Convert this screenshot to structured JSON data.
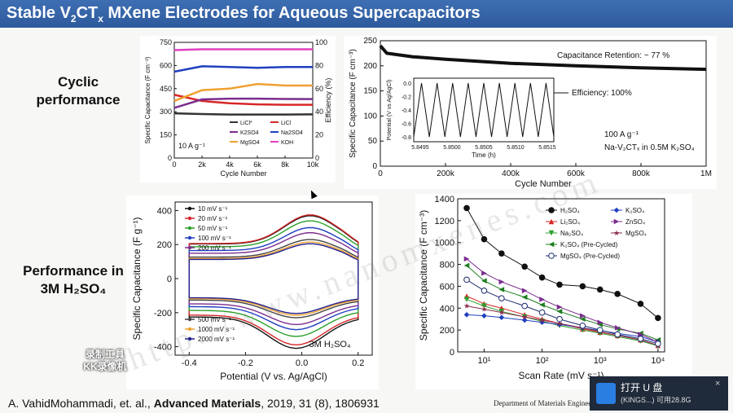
{
  "header": {
    "title_pre": "Stable V",
    "title_sub1": "2",
    "title_mid": "CT",
    "title_sub2": "x",
    "title_post": " MXene Electrodes for Aqueous Supercapacitors"
  },
  "labels": {
    "cyclic": "Cyclic\nperformance",
    "performance": "Performance in\n3M H₂SO₄"
  },
  "citation": {
    "authors": "A. VahidMohammadi, et. al., ",
    "journal": "Advanced Materials",
    "rest": ", 2019, 31 (8), 1806931"
  },
  "department": "Department of Materials Enginee",
  "watermark": "http://www.nanomxenes.com",
  "recorder": {
    "line1": "录制工具",
    "line2": "KK录像机"
  },
  "usb_notice": {
    "title": "打开 U 盘",
    "detail": "(KINGS...)  可用28.8G",
    "close": "×"
  },
  "colors": {
    "header": "#2d5a9c"
  },
  "chart_data": [
    {
      "type": "line",
      "title": "",
      "xlabel": "Cycle Number",
      "ylabel": "Specific Capacitance (F cm⁻³)",
      "y2label": "Efficiency (%)",
      "xlim": [
        0,
        10000
      ],
      "ylim": [
        0,
        750
      ],
      "y2lim": [
        0,
        100
      ],
      "xticks": [
        "0",
        "2k",
        "4k",
        "6k",
        "8k",
        "10k"
      ],
      "yticks": [
        "0",
        "150",
        "300",
        "450",
        "600",
        "750"
      ],
      "y2ticks": [
        "0",
        "20",
        "40",
        "60",
        "80",
        "100"
      ],
      "annotation": "10 A g⁻¹",
      "series": [
        {
          "name": "LiCl*",
          "color": "#333333",
          "x": [
            0,
            2000,
            4000,
            6000,
            8000,
            10000
          ],
          "values": [
            290,
            285,
            282,
            282,
            282,
            283
          ]
        },
        {
          "name": "LiCl",
          "color": "#d62728",
          "x": [
            0,
            2000,
            4000,
            6000,
            8000,
            10000
          ],
          "values": [
            410,
            370,
            355,
            348,
            345,
            345
          ]
        },
        {
          "name": "K2SO4",
          "color": "#7b2d8e",
          "x": [
            0,
            2000,
            4000,
            6000,
            8000,
            10000
          ],
          "values": [
            325,
            380,
            385,
            385,
            383,
            382
          ]
        },
        {
          "name": "Na2SO4",
          "color": "#1f3fbf",
          "x": [
            0,
            2000,
            4000,
            6000,
            8000,
            10000
          ],
          "values": [
            560,
            595,
            590,
            585,
            590,
            590
          ]
        },
        {
          "name": "MgSO4",
          "color": "#f0a030",
          "x": [
            0,
            2000,
            4000,
            6000,
            8000,
            10000
          ],
          "values": [
            370,
            440,
            450,
            480,
            470,
            470
          ]
        },
        {
          "name": "KOH",
          "color": "#e040c0",
          "x": [
            0,
            2000,
            4000,
            6000,
            8000,
            10000
          ],
          "values": [
            700,
            705,
            705,
            705,
            705,
            705
          ]
        }
      ]
    },
    {
      "type": "line",
      "title": "",
      "xlabel": "Cycle Number",
      "ylabel": "Specific Capacitance (F cm⁻³)",
      "xlim": [
        0,
        1000000
      ],
      "ylim": [
        0,
        250
      ],
      "xticks": [
        "0",
        "200k",
        "400k",
        "600k",
        "800k",
        "1M"
      ],
      "yticks": [
        "0",
        "50",
        "100",
        "150",
        "200",
        "250"
      ],
      "annotations": [
        "Capacitance Retention: ~ 77 %",
        "Efficiency: 100%",
        "100 A g⁻¹",
        "Na-V₂CTₓ in 0.5M K₂SO₄"
      ],
      "series": [
        {
          "name": "",
          "color": "#111111",
          "x": [
            0,
            20000,
            100000,
            200000,
            400000,
            600000,
            800000,
            1000000
          ],
          "values": [
            240,
            225,
            218,
            213,
            205,
            200,
            196,
            193
          ]
        }
      ],
      "inset": {
        "xlabel": "Time (h)",
        "ylabel": "Potential (V vs Ag/AgCl)",
        "xticks": [
          "5.8495",
          "5.8500",
          "5.8505",
          "5.8510",
          "5.8515"
        ],
        "yticks": [
          "-0.8",
          "-0.6",
          "-0.4",
          "-0.2",
          "0.0"
        ],
        "cycles": 9
      }
    },
    {
      "type": "line",
      "title": "",
      "xlabel": "Potential (V vs. Ag/AgCl)",
      "ylabel": "Specific Capacitance (F g⁻¹)",
      "xlim": [
        -0.45,
        0.25
      ],
      "ylim": [
        -450,
        450
      ],
      "xticks": [
        "-0.4",
        "-0.2",
        "0.0",
        "0.2"
      ],
      "yticks": [
        "-400",
        "-200",
        "0",
        "200",
        "400"
      ],
      "annotation": "3M H₂SO₄",
      "series": [
        {
          "name": "10 mV s⁻¹",
          "color": "#111111",
          "peak_up": 370,
          "peak_down": -410
        },
        {
          "name": "20 mV s⁻¹",
          "color": "#d62728",
          "peak_up": 375,
          "peak_down": -390
        },
        {
          "name": "50 mV s⁻¹",
          "color": "#2ca02c",
          "peak_up": 340,
          "peak_down": -340
        },
        {
          "name": "100 mV s⁻¹",
          "color": "#1f3fbf",
          "peak_up": 300,
          "peak_down": -300
        },
        {
          "name": "200 mV s⁻¹",
          "color": "#7b2d8e",
          "peak_up": 270,
          "peak_down": -270
        },
        {
          "name": "500 mV s⁻¹",
          "color": "#444444",
          "peak_up": 230,
          "peak_down": -230
        },
        {
          "name": "1000 mV s⁻¹",
          "color": "#f0a030",
          "peak_up": 215,
          "peak_down": -215
        },
        {
          "name": "2000 mV s⁻¹",
          "color": "#1f1f8f",
          "peak_up": 205,
          "peak_down": -205
        }
      ]
    },
    {
      "type": "line",
      "title": "",
      "xlabel": "Scan Rate (mV s⁻¹)",
      "ylabel": "Specific Capacitance (F cm⁻³)",
      "xscale": "log",
      "xlim": [
        3.5,
        13000
      ],
      "ylim": [
        0,
        1400
      ],
      "xticks": [
        "10¹",
        "10²",
        "10³",
        "10⁴"
      ],
      "yticks": [
        "0",
        "200",
        "400",
        "600",
        "800",
        "1000",
        "1200",
        "1400"
      ],
      "x": [
        5,
        10,
        20,
        50,
        100,
        200,
        500,
        1000,
        2000,
        5000,
        10000
      ],
      "series": [
        {
          "name": "H₂SO₄",
          "color": "#111111",
          "marker": "circle",
          "values": [
            1315,
            1030,
            900,
            780,
            680,
            615,
            600,
            570,
            530,
            440,
            310
          ]
        },
        {
          "name": "Li₂SO₄",
          "color": "#d62728",
          "marker": "triangle",
          "values": [
            510,
            440,
            400,
            340,
            300,
            260,
            210,
            180,
            150,
            110,
            60
          ]
        },
        {
          "name": "Na₂SO₄",
          "color": "#2ca02c",
          "marker": "triangle-down",
          "values": [
            480,
            420,
            370,
            320,
            280,
            240,
            200,
            170,
            140,
            100,
            55
          ]
        },
        {
          "name": "K₂SO₄ (Pre-Cycled)",
          "color": "#1f7f1f",
          "marker": "triangle-left",
          "values": [
            790,
            650,
            570,
            500,
            430,
            370,
            300,
            250,
            210,
            170,
            110
          ]
        },
        {
          "name": "K₂SO₄",
          "color": "#1f3fbf",
          "marker": "diamond",
          "values": [
            340,
            330,
            315,
            290,
            270,
            250,
            220,
            195,
            170,
            140,
            90
          ]
        },
        {
          "name": "ZnSO₄",
          "color": "#7b2d8e",
          "marker": "triangle-right",
          "values": [
            850,
            720,
            640,
            560,
            480,
            410,
            330,
            270,
            220,
            160,
            90
          ]
        },
        {
          "name": "MgSO₄",
          "color": "#8b2d4e",
          "marker": "star",
          "values": [
            420,
            390,
            360,
            320,
            290,
            260,
            220,
            185,
            150,
            110,
            60
          ]
        },
        {
          "name": "MgSO₄ (Pre-Cycled)",
          "color": "#1a2a6c",
          "marker": "half-circle",
          "values": [
            660,
            560,
            490,
            420,
            360,
            300,
            240,
            200,
            160,
            120,
            75
          ]
        }
      ]
    }
  ]
}
